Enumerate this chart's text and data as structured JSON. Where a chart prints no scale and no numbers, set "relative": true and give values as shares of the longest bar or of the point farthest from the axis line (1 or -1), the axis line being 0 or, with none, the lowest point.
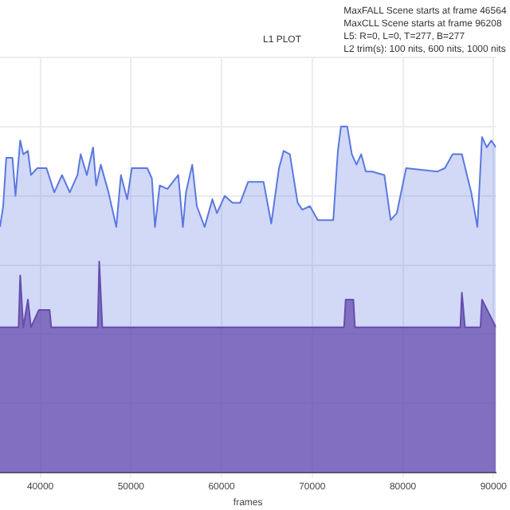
{
  "chart_data": {
    "type": "area",
    "title": "L1 PLOT",
    "xlabel": "frames",
    "relative": true,
    "grid": true,
    "legend": false,
    "marker": "none",
    "annotations": [
      "MaxFALL Scene starts at frame 46564",
      "MaxCLL Scene starts at frame 96208",
      "L5: R=0, L=0, T=277, B=277",
      "L2 trim(s): 100 nits, 600 nits, 1000 nits"
    ],
    "xlim": [
      35550,
      90270
    ],
    "xticks": [
      40000,
      50000,
      60000,
      70000,
      80000,
      90000
    ],
    "series": [
      {
        "color": "#5b78e0",
        "x": [
          35550,
          35900,
          36240,
          36920,
          37260,
          37780,
          38120,
          38630,
          38970,
          39660,
          40680,
          41540,
          42390,
          43250,
          44100,
          44450,
          45130,
          45820,
          46160,
          46670,
          47520,
          48380,
          48890,
          49580,
          50090,
          51800,
          52310,
          52650,
          53170,
          54020,
          55220,
          55730,
          56070,
          56760,
          57270,
          58130,
          58980,
          59490,
          60350,
          61200,
          62060,
          62920,
          64630,
          65480,
          66330,
          66850,
          67530,
          68390,
          68900,
          69750,
          70610,
          72320,
          72830,
          73170,
          73860,
          74370,
          74880,
          75400,
          75910,
          76590,
          77960,
          78650,
          79330,
          80360,
          83780,
          84630,
          85490,
          86510,
          87540,
          88220,
          88730,
          89250,
          89760,
          90270
        ],
        "values": [
          0.71,
          0.77,
          0.91,
          0.91,
          0.8,
          0.96,
          0.92,
          0.93,
          0.86,
          0.88,
          0.88,
          0.81,
          0.86,
          0.81,
          0.86,
          0.92,
          0.86,
          0.94,
          0.83,
          0.89,
          0.81,
          0.71,
          0.86,
          0.79,
          0.88,
          0.88,
          0.85,
          0.71,
          0.83,
          0.82,
          0.86,
          0.71,
          0.81,
          0.89,
          0.77,
          0.71,
          0.79,
          0.75,
          0.8,
          0.78,
          0.78,
          0.84,
          0.84,
          0.72,
          0.88,
          0.93,
          0.92,
          0.78,
          0.76,
          0.77,
          0.73,
          0.73,
          0.93,
          1,
          1,
          0.92,
          0.89,
          0.92,
          0.87,
          0.87,
          0.86,
          0.73,
          0.75,
          0.88,
          0.87,
          0.88,
          0.92,
          0.92,
          0.81,
          0.71,
          0.97,
          0.94,
          0.96,
          0.94
        ]
      },
      {
        "color": "#6a3d9a",
        "x": [
          35550,
          37600,
          37780,
          38120,
          38630,
          38970,
          39830,
          41030,
          41200,
          46330,
          46500,
          46840,
          73510,
          73690,
          74540,
          74710,
          86340,
          86510,
          86850,
          88560,
          88730,
          90270
        ],
        "values": [
          0.42,
          0.42,
          0.57,
          0.42,
          0.5,
          0.42,
          0.47,
          0.47,
          0.42,
          0.42,
          0.61,
          0.42,
          0.42,
          0.5,
          0.5,
          0.42,
          0.42,
          0.52,
          0.42,
          0.42,
          0.5,
          0.42
        ]
      }
    ]
  }
}
